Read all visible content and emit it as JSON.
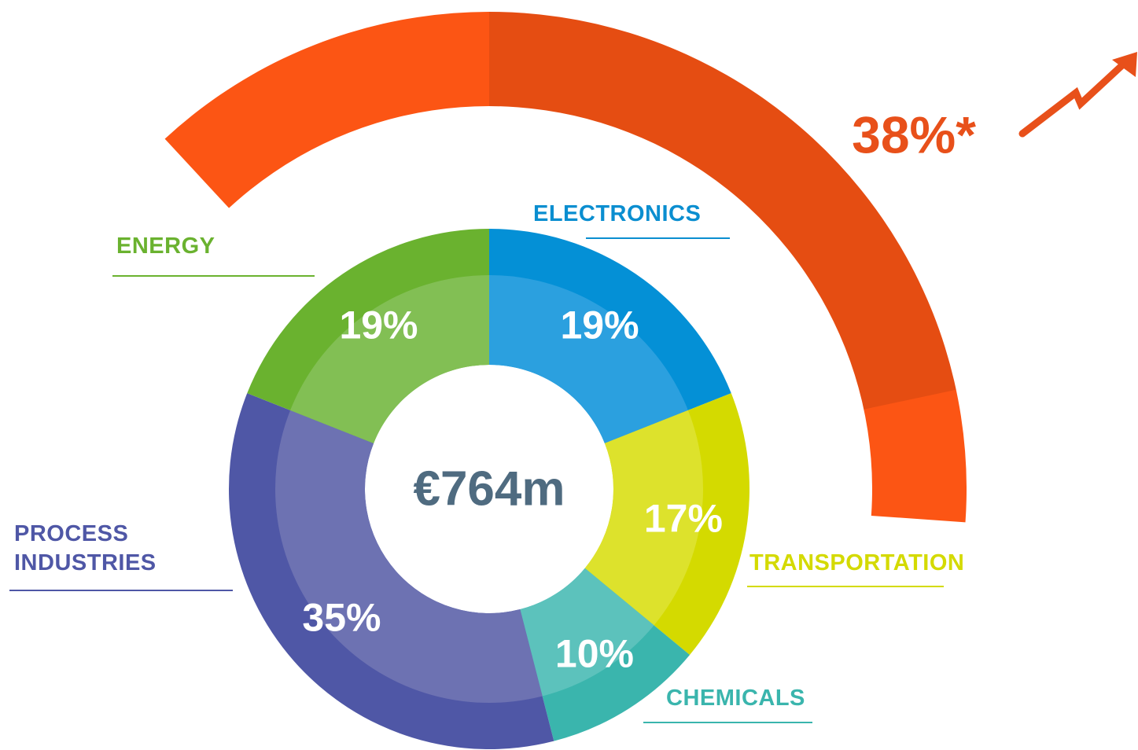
{
  "chart_data": {
    "type": "pie",
    "categories": [
      "ELECTRONICS",
      "TRANSPORTATION",
      "CHEMICALS",
      "PROCESS INDUSTRIES",
      "ENERGY"
    ],
    "values": [
      19,
      17,
      10,
      35,
      19
    ],
    "value_labels": [
      "19%",
      "17%",
      "10%",
      "35%",
      "19%"
    ],
    "colors": [
      "#0490d6",
      "#d4da00",
      "#3ab5ad",
      "#4f57a6",
      "#6ab22f"
    ],
    "inner_colors": [
      "#2ba0df",
      "#dde22c",
      "#5cc2bc",
      "#6d72b2",
      "#82bf54"
    ],
    "label_colors": [
      "#0a8ed0",
      "#d4da00",
      "#3ab5ad",
      "#4f57a6",
      "#6ab22f"
    ],
    "center_label": "€764m",
    "highlight": {
      "value": 38,
      "label": "38%*",
      "color": "#fc5514"
    }
  }
}
